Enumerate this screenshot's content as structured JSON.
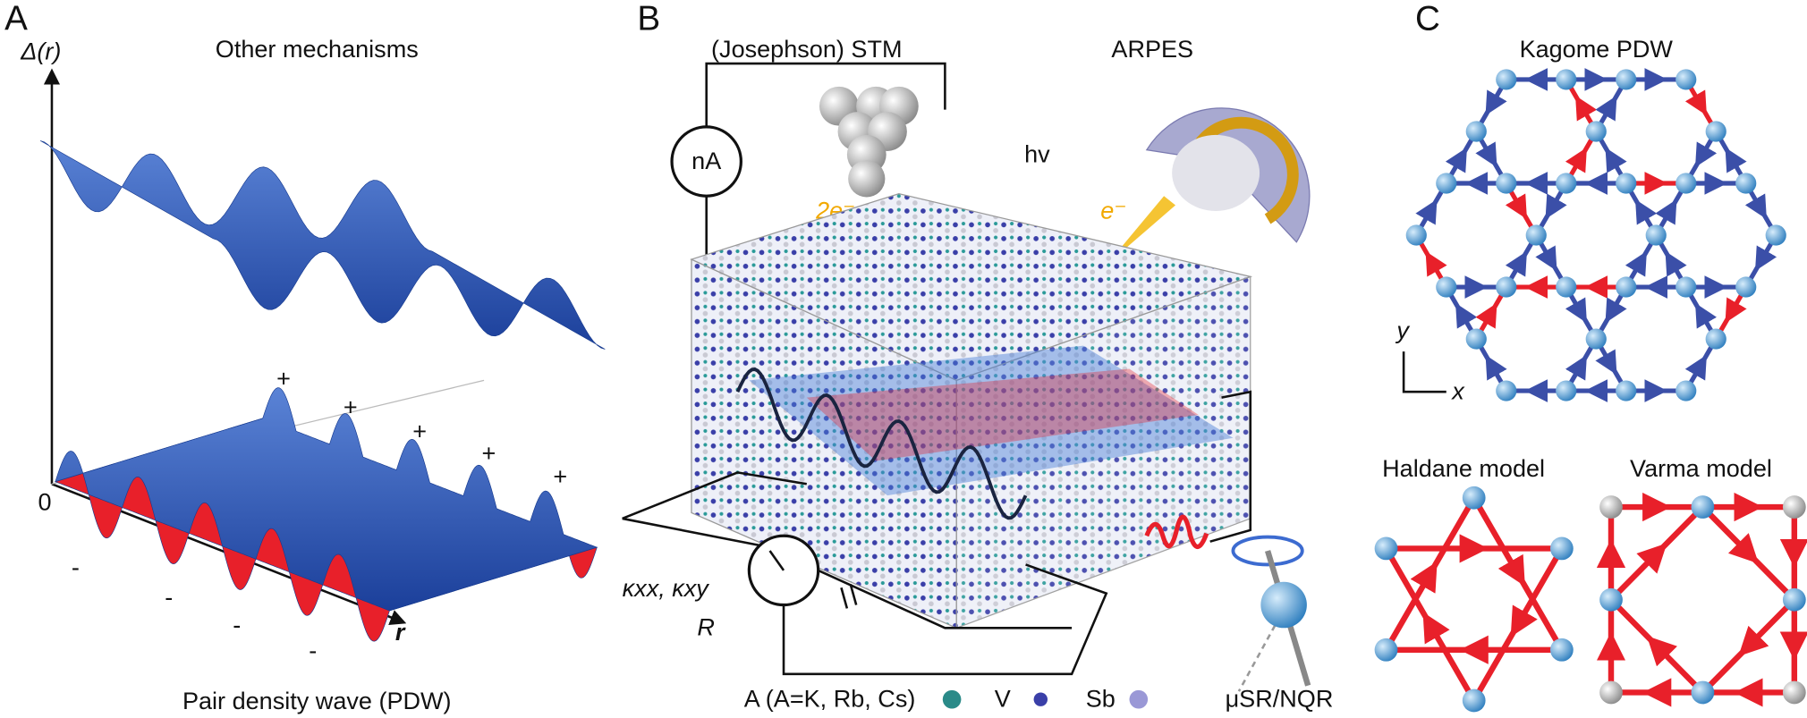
{
  "panels": {
    "A": {
      "label": "A",
      "axis_y": "Δ(r)",
      "top_title": "Other mechanisms",
      "plus_signs": [
        "+",
        "+",
        "+",
        "+",
        "+"
      ],
      "minus_signs": [
        "-",
        "-",
        "-",
        "-"
      ],
      "origin": "0",
      "axis_x": "r",
      "bottom_title": "Pair density wave (PDW)"
    },
    "B": {
      "label": "B",
      "stm": "(Josephson) STM",
      "arpes": "ARPES",
      "meter": "nA",
      "photon": "hv",
      "pair": "2e⁻",
      "electron": "e⁻",
      "transport": "κxx, κxy",
      "resistance": "R",
      "legend": [
        "A (A=K, Rb, Cs)",
        "V",
        "Sb"
      ],
      "muon": "μSR/NQR"
    },
    "C": {
      "label": "C",
      "kagome_title": "Kagome PDW",
      "axis_y": "y",
      "axis_x": "x",
      "haldane_title": "Haldane model",
      "varma_title": "Varma model"
    }
  }
}
